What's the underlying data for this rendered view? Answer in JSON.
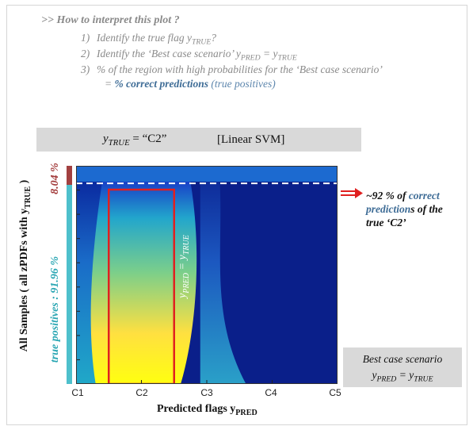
{
  "header": {
    "title": ">> How to interpret this plot ?",
    "steps": [
      {
        "num": "1)",
        "text": "Identify the true flag  y",
        "sub": "TRUE",
        "tail": "?"
      },
      {
        "num": "2)",
        "text": "Identify the ‘Best case scenario’ y",
        "sub": "PRED",
        "mid": " = y",
        "sub2": "TRUE"
      },
      {
        "num": "3)",
        "text": "% of the region with high probabilities for the ‘Best case scenario’"
      }
    ],
    "step4_prefix": "= ",
    "step4_bold": "% correct predictions",
    "step4_paren": " (true positives)"
  },
  "titlebox": {
    "y": "y",
    "sub": "TRUE",
    "eq": " = “C2”",
    "model": "[Linear SVM]"
  },
  "chart_data": {
    "type": "heatmap",
    "x_categories": [
      "C1",
      "C2",
      "C3",
      "C4",
      "C5"
    ],
    "xlabel": "Predicted flags y",
    "xlabel_sub": "PRED",
    "ylabel": "All Samples ( all zPDFs with y",
    "ylabel_sub": "TRUE",
    "ylabel_tail": " )",
    "segments": [
      {
        "label": "8.04 %",
        "value": 8.04,
        "color": "#a24040"
      },
      {
        "label": "true positives : 91.96 %",
        "value": 91.96,
        "color": "#4ec0cc"
      }
    ],
    "highlight_column": "C2",
    "inner_label": "y",
    "inner_sub1": "PRED",
    "inner_mid": " = y",
    "inner_sub2": "TRUE",
    "colors": {
      "low": "#0a1f8a",
      "mid": "#20a8c8",
      "high": "#ffff10",
      "box": "#e02020"
    }
  },
  "annotation": {
    "line1_prefix": "~92 % of ",
    "line1_bold": "correct",
    "line2_bold": "prediction",
    "line2_rest": "s of the",
    "line3": "true ‘C2’"
  },
  "bestcase": {
    "line1": "Best case scenario",
    "y": "y",
    "sub1": "PRED",
    "mid": " = y",
    "sub2": "TRUE"
  }
}
